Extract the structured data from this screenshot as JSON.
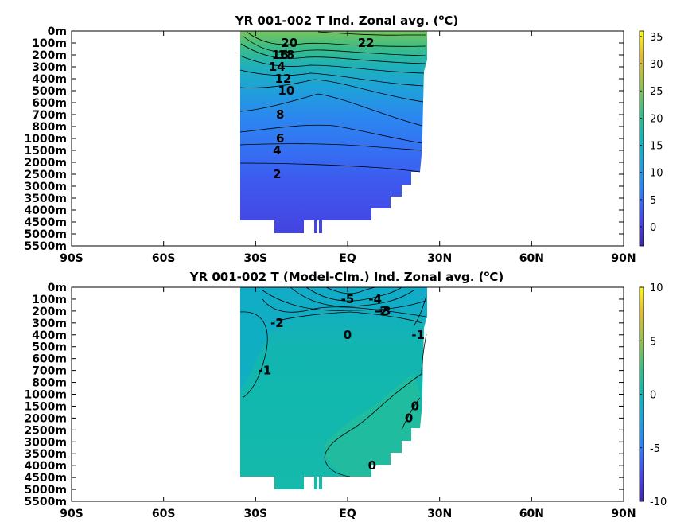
{
  "chart_data": [
    {
      "type": "heatmap",
      "title": "YR 001-002 T Ind. Zonal avg. (",
      "title_unit": "o",
      "title_suffix": "C)",
      "x_ticks": [
        "90S",
        "60S",
        "30S",
        "EQ",
        "30N",
        "60N",
        "90N"
      ],
      "x_tick_values": [
        -90,
        -60,
        -30,
        0,
        30,
        60,
        90
      ],
      "y_ticks": [
        "0m",
        "100m",
        "200m",
        "300m",
        "400m",
        "500m",
        "600m",
        "700m",
        "800m",
        "1000m",
        "1500m",
        "2000m",
        "2500m",
        "3000m",
        "3500m",
        "4000m",
        "4500m",
        "5000m",
        "5500m"
      ],
      "colorbar_ticks": [
        "0",
        "5",
        "10",
        "15",
        "20",
        "25",
        "30",
        "35"
      ],
      "colorbar_values": [
        0,
        5,
        10,
        15,
        20,
        25,
        30,
        35
      ],
      "colorbar_range": [
        -3.5,
        36
      ],
      "data_extent_lat": [
        -35,
        25
      ],
      "contour_labels": [
        {
          "text": "22",
          "lat": 6,
          "depth": "100m"
        },
        {
          "text": "20",
          "lat": -19,
          "depth": "100m"
        },
        {
          "text": "18",
          "lat": -20,
          "depth": "200m"
        },
        {
          "text": "16",
          "lat": -22,
          "depth": "200m"
        },
        {
          "text": "14",
          "lat": -23,
          "depth": "300m"
        },
        {
          "text": "12",
          "lat": -21,
          "depth": "400m"
        },
        {
          "text": "10",
          "lat": -20,
          "depth": "500m"
        },
        {
          "text": "8",
          "lat": -22,
          "depth": "700m"
        },
        {
          "text": "6",
          "lat": -22,
          "depth": "1000m"
        },
        {
          "text": "4",
          "lat": -23,
          "depth": "1500m"
        },
        {
          "text": "2",
          "lat": -23,
          "depth": "2500m"
        }
      ]
    },
    {
      "type": "heatmap",
      "title": "YR 001-002 T (Model-Clm.) Ind. Zonal avg. (",
      "title_unit": "o",
      "title_suffix": "C)",
      "x_ticks": [
        "90S",
        "60S",
        "30S",
        "EQ",
        "30N",
        "60N",
        "90N"
      ],
      "x_tick_values": [
        -90,
        -60,
        -30,
        0,
        30,
        60,
        90
      ],
      "y_ticks": [
        "0m",
        "100m",
        "200m",
        "300m",
        "400m",
        "500m",
        "600m",
        "700m",
        "800m",
        "1000m",
        "1500m",
        "2000m",
        "2500m",
        "3000m",
        "3500m",
        "4000m",
        "4500m",
        "5000m",
        "5500m"
      ],
      "colorbar_ticks": [
        "10",
        "5",
        "0",
        "-5",
        "-10"
      ],
      "colorbar_values": [
        10,
        5,
        0,
        -5,
        -10
      ],
      "colorbar_range": [
        -10,
        10
      ],
      "data_extent_lat": [
        -35,
        25
      ],
      "contour_labels": [
        {
          "text": "-5",
          "lat": 0,
          "depth": "100m"
        },
        {
          "text": "-4",
          "lat": 9,
          "depth": "100m"
        },
        {
          "text": "-3",
          "lat": 12,
          "depth": "200m"
        },
        {
          "text": "-2",
          "lat": 11,
          "depth": "200m"
        },
        {
          "text": "-2",
          "lat": -23,
          "depth": "300m"
        },
        {
          "text": "0",
          "lat": 0,
          "depth": "400m"
        },
        {
          "text": "-1",
          "lat": 23,
          "depth": "400m"
        },
        {
          "text": "-1",
          "lat": -27,
          "depth": "700m"
        },
        {
          "text": "0",
          "lat": 22,
          "depth": "1500m"
        },
        {
          "text": "0",
          "lat": 20,
          "depth": "2000m"
        },
        {
          "text": "0",
          "lat": 8,
          "depth": "4000m"
        }
      ]
    }
  ]
}
